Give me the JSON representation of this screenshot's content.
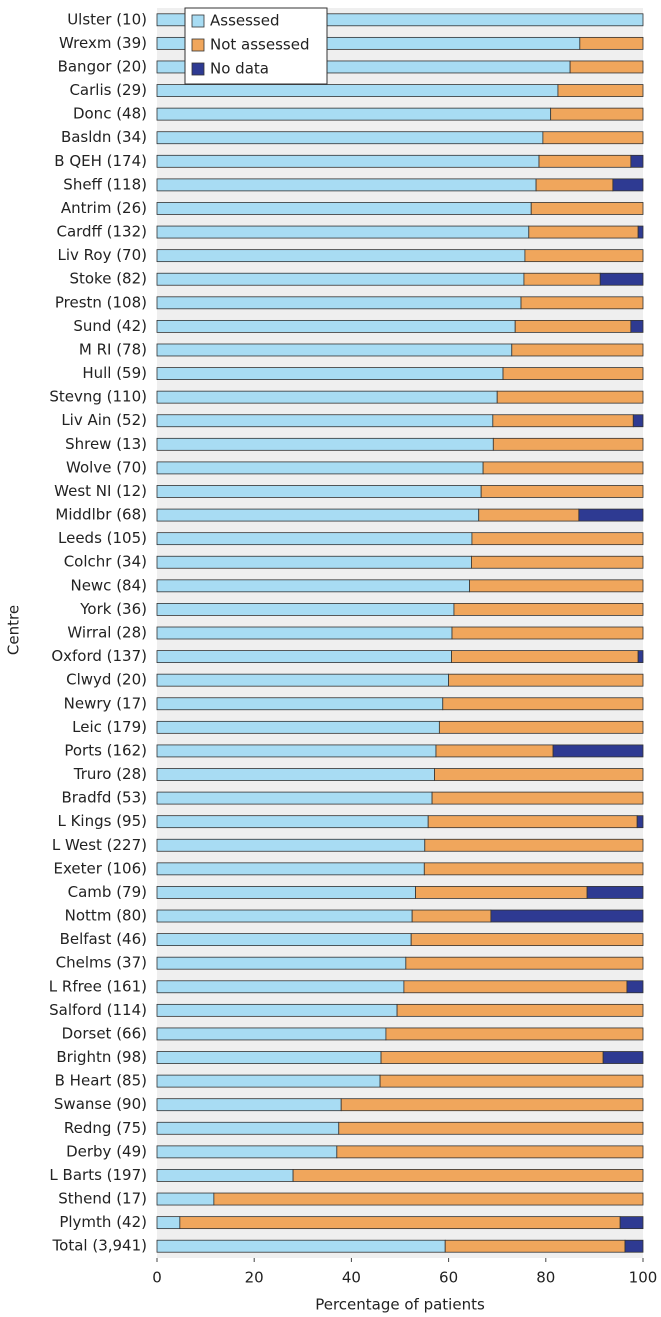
{
  "chart_data": {
    "type": "stacked-barh",
    "xlabel": "Percentage of patients",
    "ylabel": "Centre",
    "categories": [
      "Ulster (10)",
      "Wrexm (39)",
      "Bangor (20)",
      "Carlis (29)",
      "Donc (48)",
      "Basldn (34)",
      "B QEH (174)",
      "Sheff (118)",
      "Antrim (26)",
      "Cardff (132)",
      "Liv Roy (70)",
      "Stoke (82)",
      "Prestn (108)",
      "Sund (42)",
      "M RI (78)",
      "Hull (59)",
      "Stevng (110)",
      "Liv Ain (52)",
      "Shrew (13)",
      "Wolve (70)",
      "West NI (12)",
      "Middlbr (68)",
      "Leeds (105)",
      "Colchr (34)",
      "Newc (84)",
      "York (36)",
      "Wirral (28)",
      "Oxford (137)",
      "Clwyd (20)",
      "Newry (17)",
      "Leic (179)",
      "Ports (162)",
      "Truro (28)",
      "Bradfd (53)",
      "L Kings (95)",
      "L West (227)",
      "Exeter (106)",
      "Camb (79)",
      "Nottm (80)",
      "Belfast (46)",
      "Chelms (37)",
      "L Rfree (161)",
      "Salford (114)",
      "Dorset (66)",
      "Brightn (98)",
      "B Heart (85)",
      "Swanse (90)",
      "Redng (75)",
      "Derby (49)",
      "L Barts (197)",
      "Sthend (17)",
      "Plymth (42)",
      "Total (3,941)"
    ],
    "series": [
      {
        "name": "Assessed",
        "color": "#a8dcf3",
        "values": [
          100,
          87,
          85,
          82.5,
          81,
          79.4,
          78.6,
          78,
          77,
          76.5,
          75.7,
          75.5,
          74.9,
          73.7,
          73,
          71.2,
          70,
          69.1,
          69.2,
          67.1,
          66.7,
          66.2,
          64.8,
          64.7,
          64.3,
          61.1,
          60.7,
          60.6,
          60,
          58.8,
          58.1,
          57.4,
          57.1,
          56.6,
          55.8,
          55.1,
          55,
          53.2,
          52.5,
          52.3,
          51.2,
          50.8,
          49.4,
          47.1,
          46.1,
          45.9,
          37.9,
          37.4,
          37,
          28,
          11.7,
          4.7,
          59.3
        ]
      },
      {
        "name": "Not assessed",
        "color": "#f0a65c",
        "values": [
          0,
          13,
          15,
          17.5,
          19,
          20.6,
          18.9,
          15.8,
          23,
          22.5,
          24.3,
          15.7,
          25.1,
          23.8,
          27,
          28.8,
          30,
          28.9,
          30.8,
          32.9,
          33.3,
          20.6,
          35.2,
          35.3,
          35.7,
          38.9,
          39.3,
          38.4,
          40,
          41.2,
          41.9,
          24.1,
          42.9,
          43.4,
          43,
          44.9,
          45,
          35.3,
          16.2,
          47.7,
          48.8,
          45.9,
          50.6,
          52.9,
          45.7,
          54.1,
          62.1,
          62.6,
          63,
          72,
          88.3,
          90.6,
          37
        ]
      },
      {
        "name": "No data",
        "color": "#2e3a92",
        "values": [
          0,
          0,
          0,
          0,
          0,
          0,
          2.5,
          6.2,
          0,
          1,
          0,
          8.8,
          0,
          2.5,
          0,
          0,
          0,
          2,
          0,
          0,
          0,
          13.2,
          0,
          0,
          0,
          0,
          0,
          1,
          0,
          0,
          0,
          18.5,
          0,
          0,
          1.2,
          0,
          0,
          11.5,
          31.3,
          0,
          0,
          3.3,
          0,
          0,
          8.2,
          0,
          0,
          0,
          0,
          0,
          0,
          4.7,
          3.7
        ]
      }
    ],
    "xlim": [
      0,
      100
    ],
    "xticks": [
      0,
      20,
      40,
      60,
      80,
      100
    ],
    "legend": "upper-left"
  }
}
